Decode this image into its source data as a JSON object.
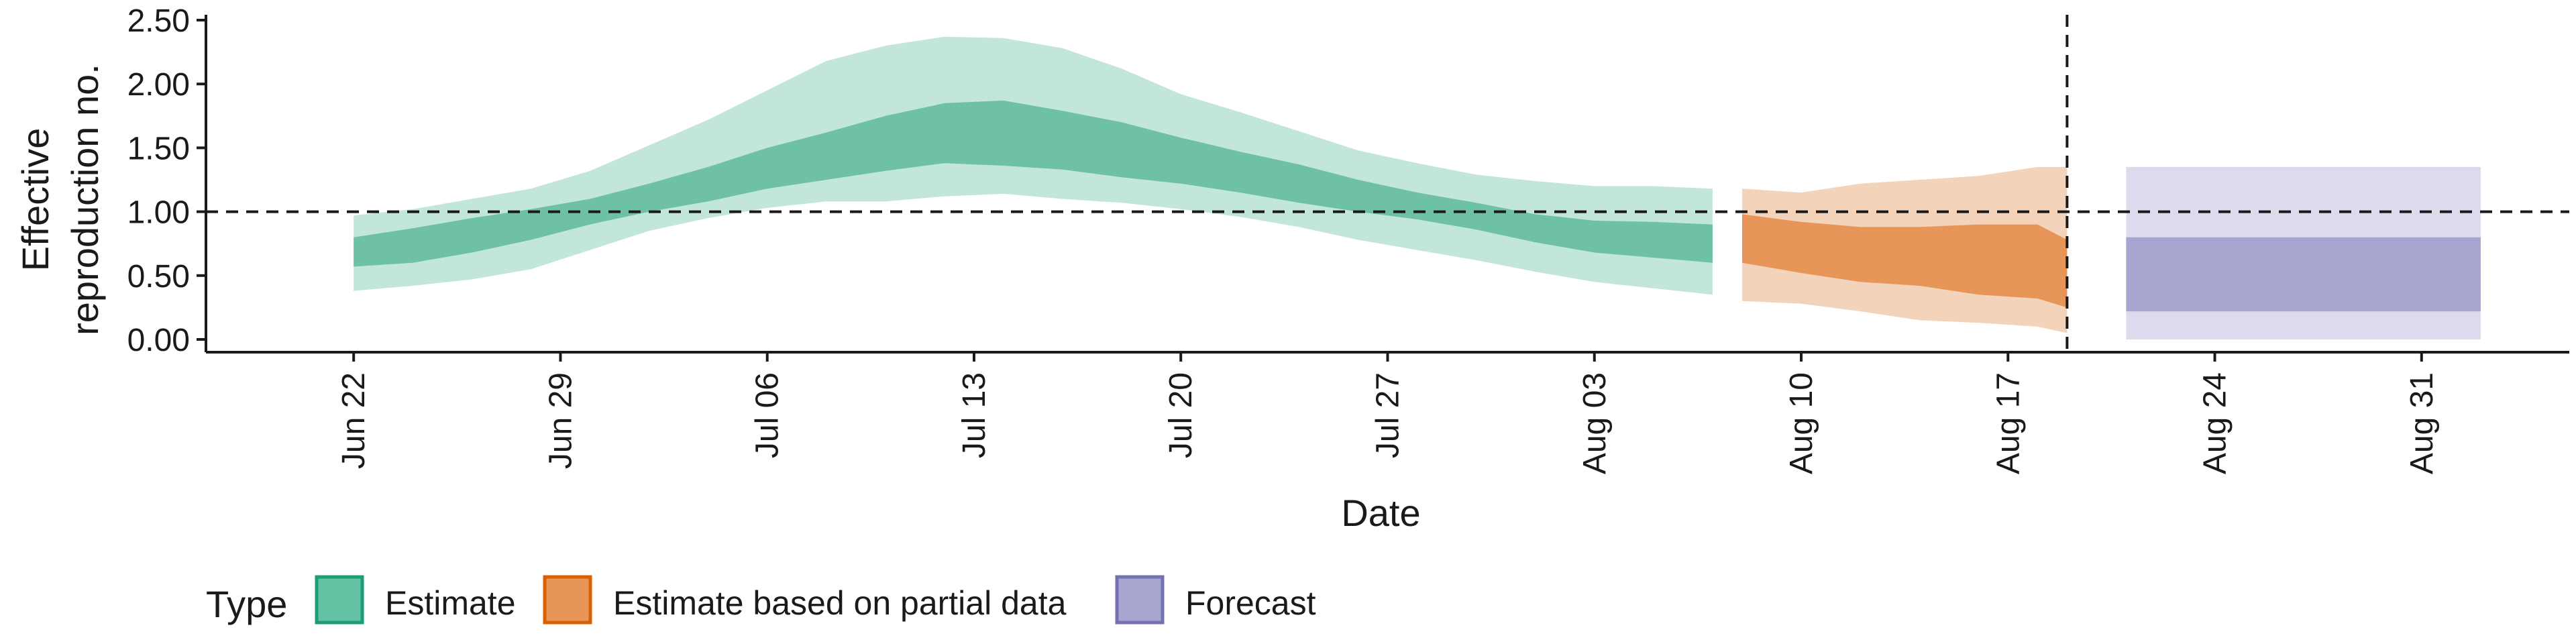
{
  "chart_data": {
    "type": "area",
    "xlabel": "Date",
    "ylabel_lines": [
      "Effective",
      "reproduction no."
    ],
    "x_ticks": [
      "Jun 22",
      "Jun 29",
      "Jul 06",
      "Jul 13",
      "Jul 20",
      "Jul 27",
      "Aug 03",
      "Aug 10",
      "Aug 17",
      "Aug 24",
      "Aug 31"
    ],
    "y_ticks": [
      "0.00",
      "0.50",
      "1.00",
      "1.50",
      "2.00",
      "2.50"
    ],
    "ylim": [
      -0.1,
      2.5
    ],
    "x_range_days": [
      "2020-06-17",
      "2020-09-05"
    ],
    "reference_line_y": 1.0,
    "forecast_cutoff_date": "2020-08-19",
    "grid": false,
    "legend": {
      "title": "Type",
      "position": "bottom-left",
      "entries": [
        {
          "label": "Estimate",
          "fill": "#66c2a5",
          "stroke": "#1b9e77"
        },
        {
          "label": "Estimate based on partial data",
          "fill": "#e8955a",
          "stroke": "#d95f02"
        },
        {
          "label": "Forecast",
          "fill": "#a7a4d0",
          "stroke": "#7570b3"
        }
      ]
    },
    "colors": {
      "estimate_outer": "#c3e6dc",
      "estimate_inner": "#6ec1a6",
      "partial_outer": "#f3d4bb",
      "partial_inner": "#e8955a",
      "forecast_outer": "#dcdbed",
      "forecast_inner": "#a7a4d0"
    },
    "series": [
      {
        "name": "Estimate",
        "dates": [
          "2020-06-22",
          "2020-06-24",
          "2020-06-26",
          "2020-06-28",
          "2020-06-30",
          "2020-07-02",
          "2020-07-04",
          "2020-07-06",
          "2020-07-08",
          "2020-07-10",
          "2020-07-12",
          "2020-07-14",
          "2020-07-16",
          "2020-07-18",
          "2020-07-20",
          "2020-07-22",
          "2020-07-24",
          "2020-07-26",
          "2020-07-28",
          "2020-07-30",
          "2020-08-01",
          "2020-08-03",
          "2020-08-05",
          "2020-08-07"
        ],
        "lower90": [
          0.38,
          0.42,
          0.47,
          0.55,
          0.7,
          0.85,
          0.95,
          1.03,
          1.08,
          1.08,
          1.12,
          1.14,
          1.1,
          1.07,
          1.02,
          0.96,
          0.88,
          0.78,
          0.7,
          0.62,
          0.53,
          0.45,
          0.4,
          0.35
        ],
        "lower50": [
          0.57,
          0.6,
          0.68,
          0.78,
          0.9,
          1.0,
          1.08,
          1.18,
          1.25,
          1.32,
          1.38,
          1.36,
          1.33,
          1.27,
          1.22,
          1.15,
          1.07,
          1.0,
          0.94,
          0.86,
          0.76,
          0.68,
          0.64,
          0.6
        ],
        "upper50": [
          0.8,
          0.87,
          0.95,
          1.02,
          1.1,
          1.22,
          1.35,
          1.5,
          1.62,
          1.75,
          1.85,
          1.87,
          1.79,
          1.7,
          1.58,
          1.47,
          1.37,
          1.25,
          1.15,
          1.07,
          0.98,
          0.93,
          0.92,
          0.9
        ],
        "upper90": [
          0.97,
          1.02,
          1.1,
          1.18,
          1.32,
          1.52,
          1.72,
          1.95,
          2.18,
          2.3,
          2.37,
          2.36,
          2.28,
          2.12,
          1.92,
          1.78,
          1.63,
          1.48,
          1.38,
          1.29,
          1.24,
          1.2,
          1.2,
          1.18
        ]
      },
      {
        "name": "Estimate based on partial data",
        "dates": [
          "2020-08-08",
          "2020-08-10",
          "2020-08-12",
          "2020-08-14",
          "2020-08-16",
          "2020-08-18",
          "2020-08-19"
        ],
        "lower90": [
          0.3,
          0.28,
          0.22,
          0.15,
          0.13,
          0.1,
          0.05
        ],
        "lower50": [
          0.6,
          0.52,
          0.45,
          0.42,
          0.35,
          0.32,
          0.25
        ],
        "upper50": [
          0.98,
          0.92,
          0.88,
          0.88,
          0.9,
          0.9,
          0.78
        ],
        "upper90": [
          1.18,
          1.15,
          1.22,
          1.25,
          1.28,
          1.35,
          1.35
        ]
      },
      {
        "name": "Forecast",
        "dates": [
          "2020-08-21",
          "2020-09-02"
        ],
        "lower90": [
          0.0,
          0.0
        ],
        "lower50": [
          0.22,
          0.22
        ],
        "upper50": [
          0.8,
          0.8
        ],
        "upper90": [
          1.35,
          1.35
        ]
      }
    ]
  }
}
